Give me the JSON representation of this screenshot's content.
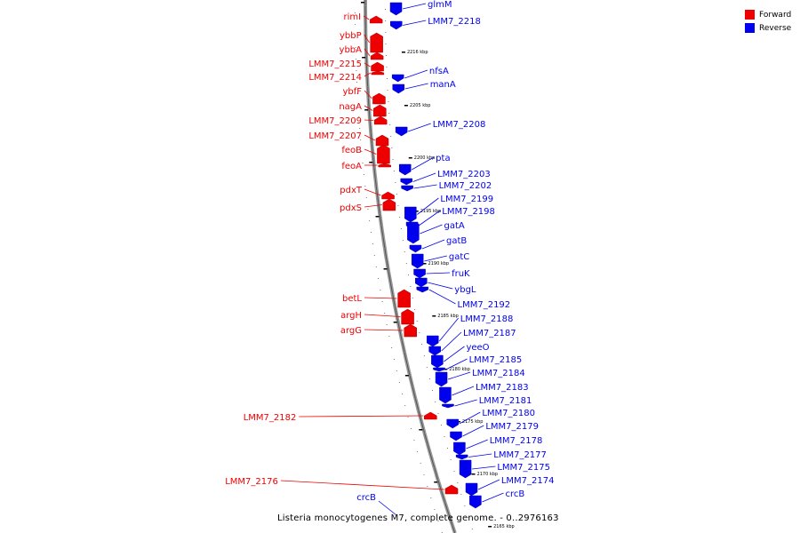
{
  "caption": "Listeria monocytogenes M7, complete genome. - 0..2976163",
  "legend": {
    "forward_label": "Forward",
    "reverse_label": "Reverse",
    "forward_color": "#ee0000",
    "reverse_color": "#0000ee"
  },
  "colors": {
    "forward": "#ee0000",
    "reverse": "#0000ee",
    "backbone": "#888888"
  },
  "tick_labels": [
    "2216 kbp",
    "2205 kbp",
    "2200 kbp",
    "2195 kbp",
    "2190 kbp",
    "2185 kbp",
    "2180 kbp",
    "2175 kbp",
    "2170 kbp",
    "2165 kbp"
  ],
  "forward_genes": [
    "rimI",
    "ybbP",
    "ybbA",
    "LMM7_2215",
    "LMM7_2214",
    "ybfF",
    "nagA",
    "LMM7_2209",
    "LMM7_2207",
    "feoB",
    "feoA",
    "pdxT",
    "pdxS",
    "betL",
    "argH",
    "argG",
    "LMM7_2182",
    "LMM7_2176",
    "crcB"
  ],
  "reverse_genes": [
    "glmM",
    "LMM7_2218",
    "nfsA",
    "manA",
    "LMM7_2208",
    "pta",
    "LMM7_2203",
    "LMM7_2202",
    "LMM7_2199",
    "LMM7_2198",
    "gatA",
    "gatB",
    "gatC",
    "fruK",
    "ybgL",
    "LMM7_2192",
    "LMM7_2188",
    "LMM7_2187",
    "yeeO",
    "LMM7_2185",
    "LMM7_2184",
    "LMM7_2183",
    "LMM7_2181",
    "LMM7_2180",
    "LMM7_2179",
    "LMM7_2178",
    "LMM7_2177",
    "LMM7_2175",
    "LMM7_2174",
    "crcB"
  ]
}
